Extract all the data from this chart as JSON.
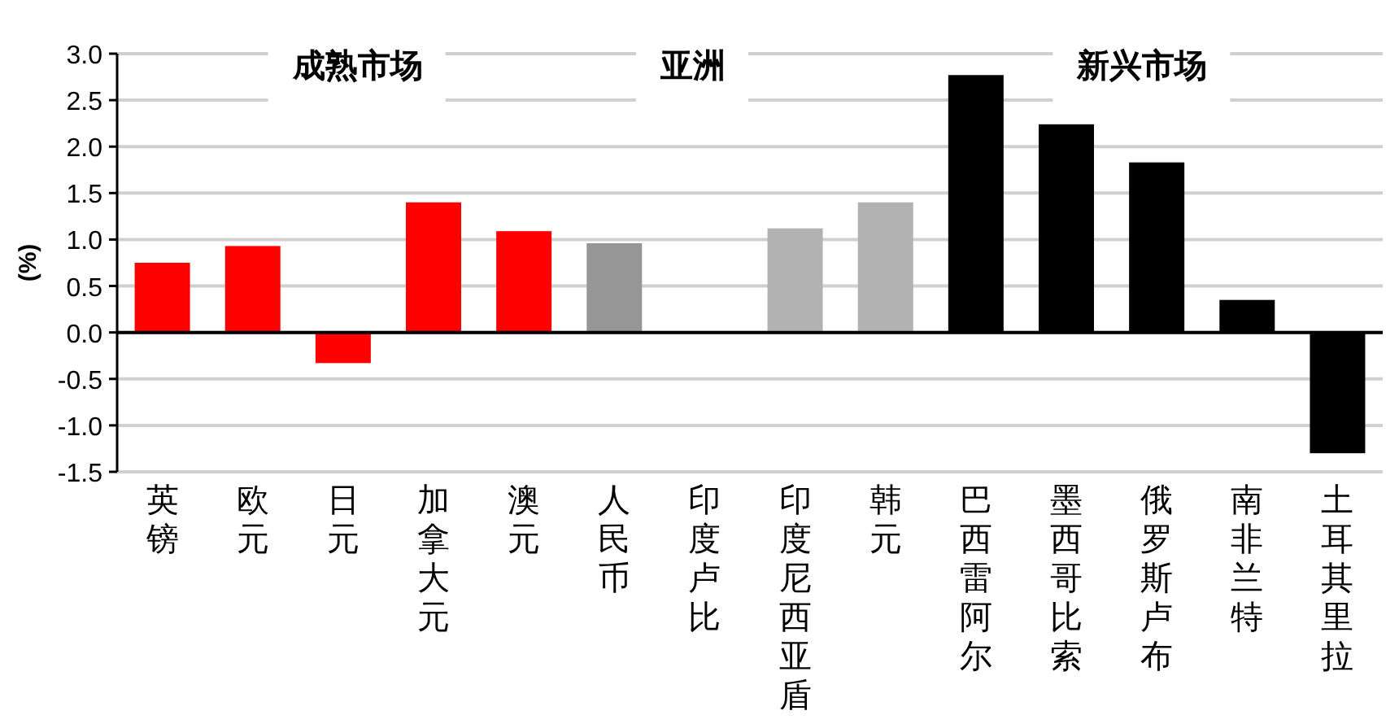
{
  "chart_data": {
    "type": "bar",
    "ylabel": "(%)",
    "categories": [
      "英镑",
      "欧元",
      "日元",
      "加拿大元",
      "澳元",
      "人民币",
      "印度卢比",
      "印度尼西亚盾",
      "韩元",
      "巴西雷阿尔",
      "墨西哥比索",
      "俄罗斯卢布",
      "南非兰特",
      "土耳其里拉"
    ],
    "values": [
      0.75,
      0.93,
      -0.33,
      1.4,
      1.09,
      0.96,
      0,
      1.12,
      1.4,
      2.77,
      2.24,
      1.83,
      0.35,
      -1.3
    ],
    "colors": [
      "#ff0000",
      "#ff0000",
      "#ff0000",
      "#ff0000",
      "#ff0000",
      "#969696",
      "#b2b2b2",
      "#b2b2b2",
      "#b2b2b2",
      "#000000",
      "#000000",
      "#000000",
      "#000000",
      "#000000"
    ],
    "ylim": [
      -1.5,
      3.0
    ],
    "yticks": [
      {
        "value": -1.5,
        "label": "-1.5"
      },
      {
        "value": -1.0,
        "label": "-1.0"
      },
      {
        "value": -0.5,
        "label": "-0.5"
      },
      {
        "value": 0,
        "label": "0.0"
      },
      {
        "value": 0.5,
        "label": "0.5"
      },
      {
        "value": 1.0,
        "label": "1.0"
      },
      {
        "value": 1.5,
        "label": "1.5"
      },
      {
        "value": 2.0,
        "label": "2.0"
      },
      {
        "value": 2.5,
        "label": "2.5"
      },
      {
        "value": 3.0,
        "label": "3.0"
      }
    ],
    "grid": "y",
    "annotations": [
      "成熟市场",
      "亚洲",
      "新兴市场"
    ]
  }
}
